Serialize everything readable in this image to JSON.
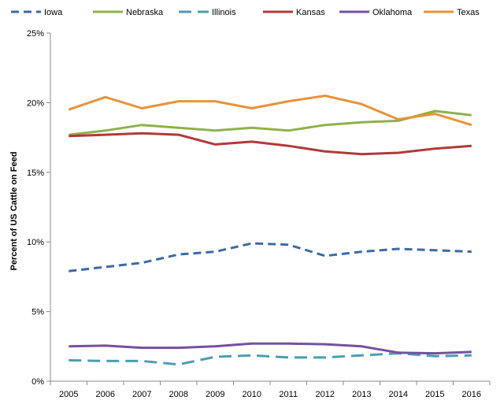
{
  "chart_data": {
    "type": "line",
    "title": "",
    "xlabel": "",
    "ylabel": "Percent of US Cattle on Feed",
    "x": [
      "2005",
      "2006",
      "2007",
      "2008",
      "2009",
      "2010",
      "2011",
      "2012",
      "2013",
      "2014",
      "2015",
      "2016"
    ],
    "ylim": [
      0,
      25
    ],
    "yticks": [
      "0%",
      "5%",
      "10%",
      "15%",
      "20%",
      "25%"
    ],
    "ytick_values": [
      0,
      5,
      10,
      15,
      20,
      25
    ],
    "grid": false,
    "legend_position": "top",
    "series": [
      {
        "name": "Iowa",
        "color": "#3C6AA6",
        "dash": "dashed",
        "values": [
          7.9,
          8.2,
          8.5,
          9.1,
          9.3,
          9.9,
          9.8,
          9.0,
          9.3,
          9.5,
          9.4,
          9.3
        ]
      },
      {
        "name": "Nebraska",
        "color": "#8FB14A",
        "dash": "solid",
        "values": [
          17.7,
          18.0,
          18.4,
          18.2,
          18.0,
          18.2,
          18.0,
          18.4,
          18.6,
          18.7,
          19.4,
          19.1
        ]
      },
      {
        "name": "Illinois",
        "color": "#4A9EB0",
        "dash": "longdash",
        "values": [
          1.5,
          1.45,
          1.45,
          1.2,
          1.75,
          1.85,
          1.7,
          1.7,
          1.85,
          2.0,
          1.8,
          1.85
        ]
      },
      {
        "name": "Kansas",
        "color": "#B03A3A",
        "dash": "solid",
        "values": [
          17.6,
          17.7,
          17.8,
          17.7,
          17.0,
          17.2,
          16.9,
          16.5,
          16.3,
          16.4,
          16.7,
          16.9
        ]
      },
      {
        "name": "Oklahoma",
        "color": "#7550A0",
        "dash": "solid",
        "values": [
          2.5,
          2.55,
          2.4,
          2.4,
          2.5,
          2.7,
          2.7,
          2.65,
          2.5,
          2.05,
          2.0,
          2.1
        ]
      },
      {
        "name": "Texas",
        "color": "#E8923A",
        "dash": "solid",
        "values": [
          19.5,
          20.4,
          19.6,
          20.1,
          20.1,
          19.6,
          20.1,
          20.5,
          19.9,
          18.8,
          19.2,
          18.4
        ]
      }
    ]
  }
}
